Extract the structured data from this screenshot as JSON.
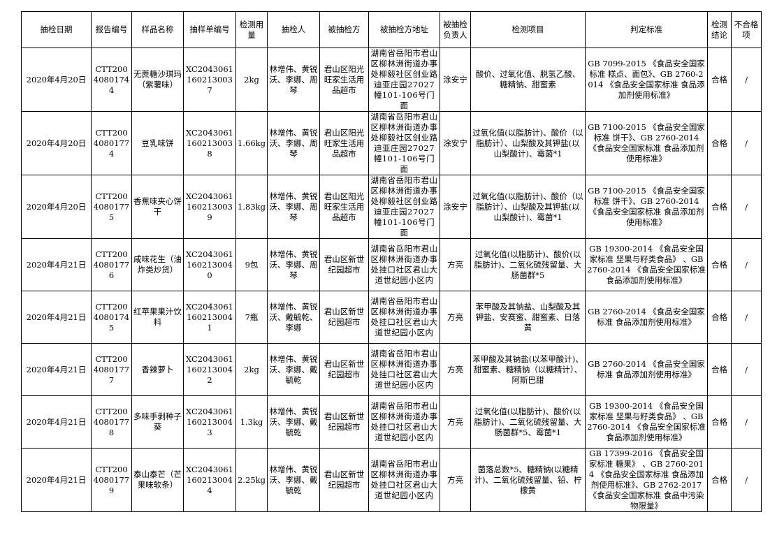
{
  "headers": [
    "抽检日期",
    "报告编号",
    "样品名称",
    "抽样单编号",
    "检测用量",
    "抽检人",
    "被抽检方",
    "被抽检方地址",
    "被抽检负责人",
    "检测项目",
    "判定标准",
    "检测结论",
    "不合格项"
  ],
  "rows": [
    [
      "2020年4月20日",
      "CTT20040801744",
      "无蔗糖沙琪玛（紫薯味）",
      "XC20430611602130037",
      "2kg",
      "林增伟、黄锐沃、李娜、周琴",
      "君山区阳光旺家生活用品超市",
      "湖南省岳阳市君山区柳林洲街道办事处柳毅社区创业路迪亚庄园27027幢101-106号门面",
      "涂安宁",
      "酸价、过氧化值、脱氢乙酸、糖精钠、甜蜜素",
      "GB 7099-2015 《食品安全国家标准 糕点、面包》、GB 2760-2014 《食品安全国家标准 食品添加剂使用标准》",
      "合格",
      "/"
    ],
    [
      "2020年4月20日",
      "CTT20040801774",
      "豆乳味饼",
      "XC20430611602130038",
      "1.66kg",
      "林增伟、黄锐沃、李娜、周琴",
      "君山区阳光旺家生活用品超市",
      "湖南省岳阳市君山区柳林洲街道办事处柳毅社区创业路迪亚庄园27027幢101-106号门面",
      "涂安宁",
      "过氧化值(以脂肪计)、酸价（以脂肪计）、山梨酸及其钾盐(以山梨酸计)、霉菌*1",
      "GB 7100-2015 《食品安全国家标准 饼干》、GB 2760-2014 《食品安全国家标准 食品添加剂使用标准》",
      "合格",
      "/"
    ],
    [
      "2020年4月20日",
      "CTT20040801775",
      "香蕉味夹心饼干",
      "XC20430611602130039",
      "1.83kg",
      "林增伟、黄锐沃、李娜、周琴",
      "君山区阳光旺家生活用品超市",
      "湖南省岳阳市君山区柳林洲街道办事处柳毅社区创业路迪亚庄园27027幢101-106号门面",
      "涂安宁",
      "过氧化值(以脂肪计)、酸价（以脂肪计）、山梨酸及其钾盐(以山梨酸计)、霉菌*1",
      "GB 7100-2015 《食品安全国家标准 饼干》、GB 2760-2014 《食品安全国家标准 食品添加剂使用标准》",
      "合格",
      "/"
    ],
    [
      "2020年4月21日",
      "CTT20040801776",
      "咸味花生（油炸类炒货）",
      "XC20430611602130040",
      "9包",
      "林增伟、黄锐沃、李娜、周琴",
      "君山区新世纪园超市",
      "湖南省岳阳市君山区柳林洲街道办事处挂口社区君山大道世纪园小区内",
      "方亮",
      "过氧化值(以脂肪计)、酸价(以脂肪计)、二氧化硫残留量、大肠菌群*5",
      "GB 19300-2014 《食品安全国家标准 坚果与籽类食品》 、GB 2760-2014 《食品安全国家标准 食品添加剂使用标准》",
      "合格",
      "/"
    ],
    [
      "2020年4月21日",
      "CTT20040801745",
      "红苹果果汁饮料",
      "XC20430611602130041",
      "7瓶",
      "林增伟、黄锐沃、戴毓乾、李娜",
      "君山区新世纪园超市",
      "湖南省岳阳市君山区柳林洲街道办事处挂口社区君山大道世纪园小区内",
      "方亮",
      "苯甲酸及其钠盐、山梨酸及其钾盐、安赛蜜、甜蜜素、日落黄",
      "GB 2760-2014 《食品安全国家标准 食品添加剂使用标准》",
      "合格",
      "/"
    ],
    [
      "2020年4月21日",
      "CTT20040801777",
      "香辣萝卜",
      "XC20430611602130042",
      "2kg",
      "林增伟、黄锐沃、李娜、戴毓乾",
      "君山区新世纪园超市",
      "湖南省岳阳市君山区柳林洲街道办事处挂口社区君山大道世纪园小区内",
      "方亮",
      "苯甲酸及其钠盐(以苯甲酸计)、甜蜜素、糖精钠（以糖精计）、阿斯巴甜",
      "GB 2760-2014 《食品安全国家标准 食品添加剂使用标准》",
      "合格",
      "/"
    ],
    [
      "2020年4月21日",
      "CTT20040801778",
      "多味手剥种子葵",
      "XC20430611602130043",
      "1.3kg",
      "林增伟、黄锐沃、李娜、戴毓乾",
      "君山区新世纪园超市",
      "湖南省岳阳市君山区柳林洲街道办事处挂口社区君山大道世纪园小区内",
      "方亮",
      "过氧化值(以脂肪计)、酸价(以脂肪计)、二氧化硫残留量、大肠菌群*5、霉菌*1",
      "GB 19300-2014 《食品安全国家标准 坚果与籽类食品》 、GB 2760-2014 《食品安全国家标准 食品添加剂使用标准》",
      "合格",
      "/"
    ],
    [
      "2020年4月21日",
      "CTT20040801779",
      "泰山泰芒（芒果味软条）",
      "XC20430611602130044",
      "2.25kg",
      "林增伟、黄锐沃、李娜、戴毓乾",
      "君山区新世纪园超市",
      "湖南省岳阳市君山区柳林洲街道办事处挂口社区君山大道世纪园小区内",
      "方亮",
      "菌落总数*5、糖精钠(以糖精计)、二氧化硫残留量、铅、柠檬黄",
      "GB 17399-2016 《食品安全国家标准 糖果》 、GB 2760-2014 《食品安全国家标准 食品添加剂使用标准》、GB 2762-2017 《食品安全国家标准 食品中污染物限量》",
      "合格",
      "/"
    ]
  ]
}
